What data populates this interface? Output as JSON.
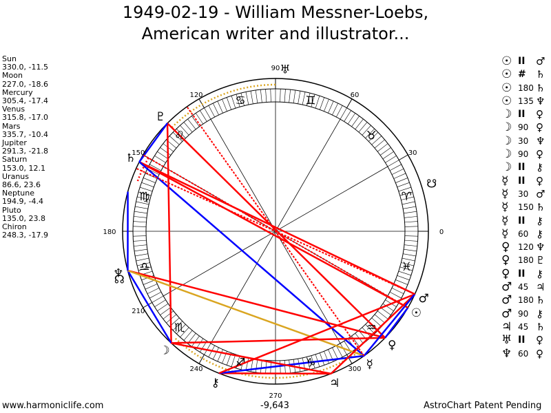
{
  "title_line1": "1949-02-19 - William Messner-Loebs,",
  "title_line2": "American writer and illustrator...",
  "footer": {
    "left": "www.harmoniclife.com",
    "center": "-9,643",
    "right": "AstroChart Patent Pending"
  },
  "planets": [
    {
      "name": "Sun",
      "coords": "330.0, -11.5",
      "glyph": "☉",
      "color": "#000000"
    },
    {
      "name": "Moon",
      "coords": "227.0, -18.6",
      "glyph": "☽",
      "color": "#000000"
    },
    {
      "name": "Mercury",
      "coords": "305.4, -17.4",
      "glyph": "☿",
      "color": "#000000"
    },
    {
      "name": "Venus",
      "coords": "315.8, -17.0",
      "glyph": "♀",
      "color": "#000000"
    },
    {
      "name": "Mars",
      "coords": "335.7, -10.4",
      "glyph": "♂",
      "color": "#000000"
    },
    {
      "name": "Jupiter",
      "coords": "291.3, -21.8",
      "glyph": "♃",
      "color": "#000000"
    },
    {
      "name": "Saturn",
      "coords": "153.0, 12.1",
      "glyph": "♄",
      "color": "#000000"
    },
    {
      "name": "Uranus",
      "coords": "86.6, 23.6",
      "glyph": "♅",
      "color": "#000000"
    },
    {
      "name": "Neptune",
      "coords": "194.9, -4.4",
      "glyph": "♆",
      "color": "#000000"
    },
    {
      "name": "Pluto",
      "coords": "135.0, 23.8",
      "glyph": "♇",
      "color": "#000000"
    },
    {
      "name": "Chiron",
      "coords": "248.3, -17.9",
      "glyph": "⚷",
      "color": "#000000"
    }
  ],
  "nodes": [
    {
      "glyph": "☊",
      "longitude": 197.0
    },
    {
      "glyph": "☋",
      "longitude": 17.0
    }
  ],
  "zodiac_signs": [
    {
      "glyph": "♈",
      "longitude": 15
    },
    {
      "glyph": "♉",
      "longitude": 45
    },
    {
      "glyph": "♊",
      "longitude": 75
    },
    {
      "glyph": "♋",
      "longitude": 105
    },
    {
      "glyph": "♌",
      "longitude": 135
    },
    {
      "glyph": "♍",
      "longitude": 165
    },
    {
      "glyph": "♎",
      "longitude": 195
    },
    {
      "glyph": "♏",
      "longitude": 225
    },
    {
      "glyph": "♐",
      "longitude": 255
    },
    {
      "glyph": "♑",
      "longitude": 285
    },
    {
      "glyph": "♒",
      "longitude": 315
    },
    {
      "glyph": "♓",
      "longitude": 345
    }
  ],
  "degree_labels": [
    {
      "text": "0",
      "longitude": 0
    },
    {
      "text": "30",
      "longitude": 30
    },
    {
      "text": "60",
      "longitude": 60
    },
    {
      "text": "90",
      "longitude": 90
    },
    {
      "text": "120",
      "longitude": 120
    },
    {
      "text": "150",
      "longitude": 150
    },
    {
      "text": "180",
      "longitude": 180
    },
    {
      "text": "210",
      "longitude": 210
    },
    {
      "text": "240",
      "longitude": 240
    },
    {
      "text": "270",
      "longitude": 270
    },
    {
      "text": "300",
      "longitude": 300
    }
  ],
  "aspects": [
    {
      "p1": "☉",
      "aspect": "II",
      "p2": "♂"
    },
    {
      "p1": "☉",
      "aspect": "#",
      "p2": "♄"
    },
    {
      "p1": "☉",
      "aspect": "180",
      "p2": "♄"
    },
    {
      "p1": "☉",
      "aspect": "135",
      "p2": "♆"
    },
    {
      "p1": "☽",
      "aspect": "II",
      "p2": "♀"
    },
    {
      "p1": "☽",
      "aspect": "90",
      "p2": "♀"
    },
    {
      "p1": "☽",
      "aspect": "30",
      "p2": "♆"
    },
    {
      "p1": "☽",
      "aspect": "90",
      "p2": "♀"
    },
    {
      "p1": "☽",
      "aspect": "II",
      "p2": "⚷"
    },
    {
      "p1": "☿",
      "aspect": "II",
      "p2": "♀"
    },
    {
      "p1": "☿",
      "aspect": "30",
      "p2": "♂"
    },
    {
      "p1": "☿",
      "aspect": "150",
      "p2": "♄"
    },
    {
      "p1": "☿",
      "aspect": "II",
      "p2": "⚷"
    },
    {
      "p1": "☿",
      "aspect": "60",
      "p2": "⚷"
    },
    {
      "p1": "♀",
      "aspect": "120",
      "p2": "♆"
    },
    {
      "p1": "♀",
      "aspect": "180",
      "p2": "♇"
    },
    {
      "p1": "♀",
      "aspect": "II",
      "p2": "⚷"
    },
    {
      "p1": "♂",
      "aspect": "45",
      "p2": "♃"
    },
    {
      "p1": "♂",
      "aspect": "180",
      "p2": "♄"
    },
    {
      "p1": "♂",
      "aspect": "90",
      "p2": "⚷"
    },
    {
      "p1": "♃",
      "aspect": "45",
      "p2": "♄"
    },
    {
      "p1": "♅",
      "aspect": "II",
      "p2": "♀"
    },
    {
      "p1": "♆",
      "aspect": "60",
      "p2": "♀"
    }
  ],
  "chart_data": {
    "type": "scatter",
    "description_units": "ecliptic longitude degrees",
    "series": [
      {
        "name": "Sun",
        "x": 330.0,
        "y": -11.5
      },
      {
        "name": "Moon",
        "x": 227.0,
        "y": -18.6
      },
      {
        "name": "Mercury",
        "x": 305.4,
        "y": -17.4
      },
      {
        "name": "Venus",
        "x": 315.8,
        "y": -17.0
      },
      {
        "name": "Mars",
        "x": 335.7,
        "y": -10.4
      },
      {
        "name": "Jupiter",
        "x": 291.3,
        "y": -21.8
      },
      {
        "name": "Saturn",
        "x": 153.0,
        "y": 12.1
      },
      {
        "name": "Uranus",
        "x": 86.6,
        "y": 23.6
      },
      {
        "name": "Neptune",
        "x": 194.9,
        "y": -4.4
      },
      {
        "name": "Pluto",
        "x": 135.0,
        "y": 23.8
      },
      {
        "name": "Chiron",
        "x": 248.3,
        "y": -17.9
      }
    ],
    "aspect_lines": [
      {
        "from": 135.0,
        "to": 315.8,
        "color": "#ff0000"
      },
      {
        "from": 153.0,
        "to": 330.0,
        "color": "#ff0000"
      },
      {
        "from": 153.0,
        "to": 335.7,
        "color": "#ff0000"
      },
      {
        "from": 153.0,
        "to": 305.4,
        "color": "#0000ff"
      },
      {
        "from": 135.0,
        "to": 227.0,
        "color": "#ff0000"
      },
      {
        "from": 194.9,
        "to": 227.0,
        "color": "#0000ff"
      },
      {
        "from": 194.9,
        "to": 315.8,
        "color": "#ff0000"
      },
      {
        "from": 194.9,
        "to": 305.4,
        "color": "#daa520"
      },
      {
        "from": 227.0,
        "to": 315.8,
        "color": "#ff0000"
      },
      {
        "from": 248.3,
        "to": 291.3,
        "color": "#ff0000"
      },
      {
        "from": 248.3,
        "to": 305.4,
        "color": "#0000ff"
      },
      {
        "from": 248.3,
        "to": 335.7,
        "color": "#ff0000"
      },
      {
        "from": 291.3,
        "to": 335.7,
        "color": "#ff0000"
      },
      {
        "from": 305.4,
        "to": 335.7,
        "color": "#0000ff"
      },
      {
        "from": 315.8,
        "to": 330.0,
        "color": "#0000ff"
      },
      {
        "from": 165.0,
        "to": 194.9,
        "color": "#0000ff"
      },
      {
        "from": 135.0,
        "to": 153.0,
        "color": "#0000ff"
      },
      {
        "from": 227.0,
        "to": 291.3,
        "color": "#ff0000"
      }
    ],
    "dotted_arcs": [
      {
        "from": 90,
        "to": 135,
        "color": "#daa520"
      },
      {
        "from": 150,
        "to": 160,
        "color": "#ff0000"
      },
      {
        "from": 227,
        "to": 305,
        "color": "#daa520"
      }
    ]
  }
}
